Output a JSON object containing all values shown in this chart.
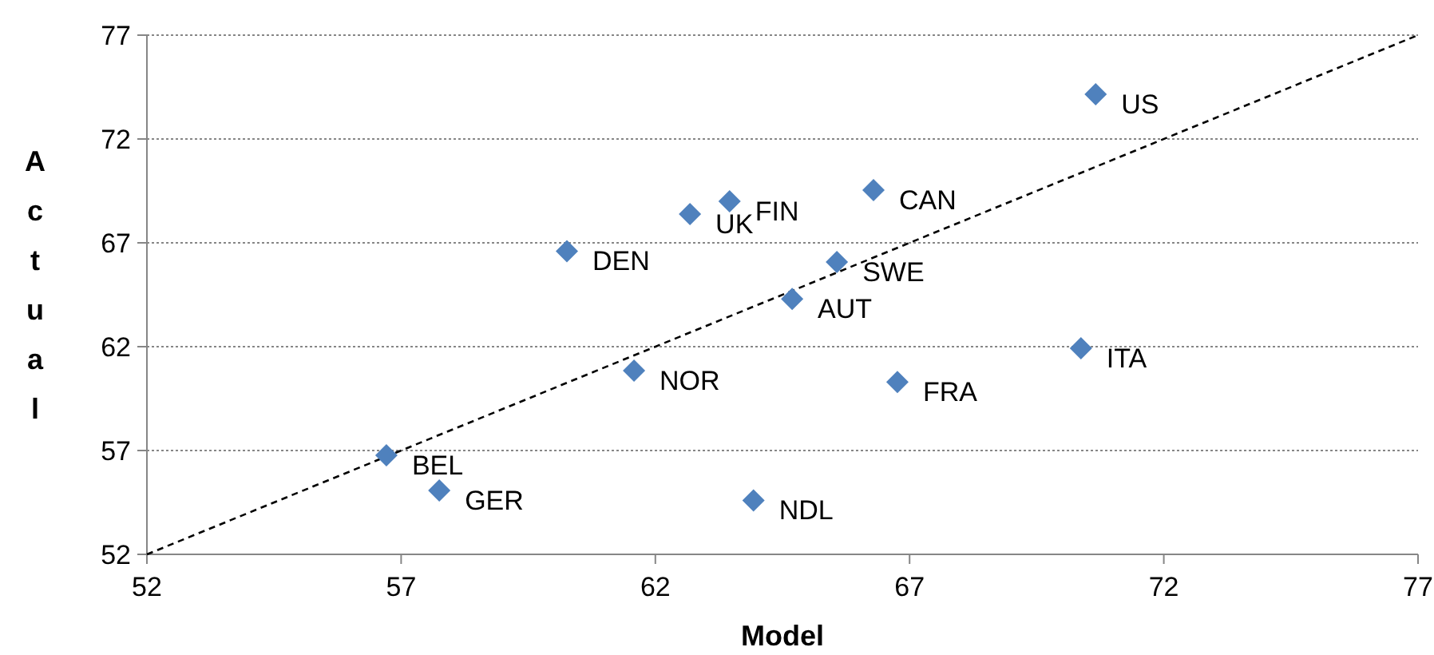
{
  "chart_data": {
    "type": "scatter",
    "xlabel": "Model",
    "ylabel": "Actual",
    "xlim": [
      52,
      77
    ],
    "ylim": [
      52,
      77
    ],
    "xticks": [
      52,
      57,
      62,
      67,
      72,
      77
    ],
    "yticks": [
      52,
      57,
      62,
      67,
      72,
      77
    ],
    "grid": "y",
    "marker": "diamond",
    "series": [
      {
        "color": "#4f81bd",
        "x": [
          70.66,
          66.29,
          63.46,
          62.68,
          60.26,
          65.57,
          64.69,
          70.37,
          61.58,
          66.76,
          56.71,
          57.75,
          63.93
        ],
        "values": [
          74.15,
          69.54,
          69.0,
          68.38,
          66.6,
          66.08,
          64.3,
          61.92,
          60.85,
          60.3,
          56.77,
          55.08,
          54.6
        ]
      },
      {
        "type": "line",
        "color": "#000000",
        "line_style": "dashed",
        "marker": "none",
        "x": [
          52,
          77
        ],
        "values": [
          52,
          77
        ]
      }
    ],
    "annotations": [
      {
        "text": "US",
        "x": 70.66,
        "y": 74.15
      },
      {
        "text": "CAN",
        "x": 66.29,
        "y": 69.54
      },
      {
        "text": "FIN",
        "x": 63.46,
        "y": 69.0
      },
      {
        "text": "UK",
        "x": 62.68,
        "y": 68.38
      },
      {
        "text": "DEN",
        "x": 60.26,
        "y": 66.6
      },
      {
        "text": "SWE",
        "x": 65.57,
        "y": 66.08
      },
      {
        "text": "AUT",
        "x": 64.69,
        "y": 64.3
      },
      {
        "text": "ITA",
        "x": 70.37,
        "y": 61.92
      },
      {
        "text": "NOR",
        "x": 61.58,
        "y": 60.85
      },
      {
        "text": "FRA",
        "x": 66.76,
        "y": 60.3
      },
      {
        "text": "BEL",
        "x": 56.71,
        "y": 56.77
      },
      {
        "text": "GER",
        "x": 57.75,
        "y": 55.08
      },
      {
        "text": "NDL",
        "x": 63.93,
        "y": 54.6
      }
    ]
  }
}
